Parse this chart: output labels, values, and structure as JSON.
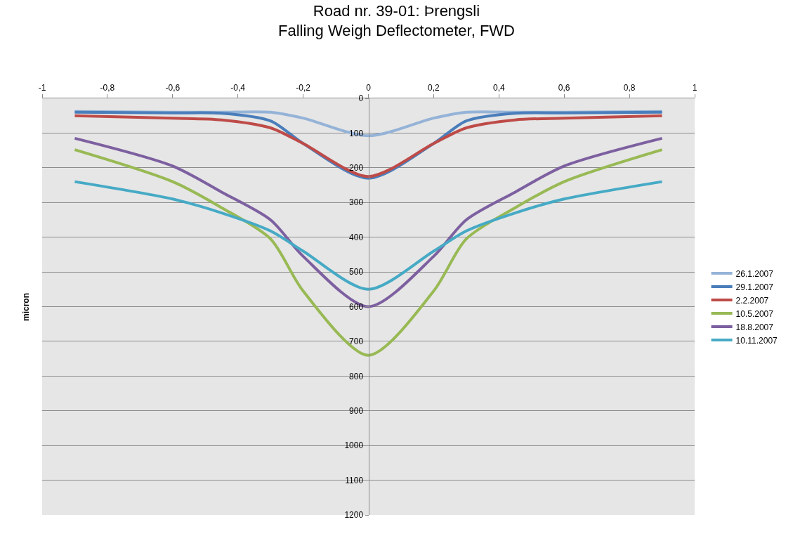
{
  "chart_data": {
    "type": "line",
    "title": "Road nr. 39-01: Þrengsli\nFalling Weigh Deflectometer, FWD",
    "ylabel": "micron",
    "x": [
      -0.9,
      -0.6,
      -0.45,
      -0.3,
      -0.2,
      0,
      0.2,
      0.3,
      0.45,
      0.6,
      0.9
    ],
    "series": [
      {
        "name": "26.1.2007",
        "color": "#95b3d7",
        "values": [
          38,
          40,
          40,
          40,
          57,
          108,
          57,
          40,
          40,
          40,
          38
        ]
      },
      {
        "name": "29.1.2007",
        "color": "#4a7ebb",
        "values": [
          40,
          42,
          43,
          65,
          130,
          230,
          130,
          65,
          43,
          42,
          40
        ]
      },
      {
        "name": "2.2.2007",
        "color": "#be4b48",
        "values": [
          50,
          57,
          62,
          85,
          130,
          225,
          130,
          85,
          62,
          57,
          50
        ]
      },
      {
        "name": "10.5.2007",
        "color": "#98b954",
        "values": [
          148,
          240,
          315,
          405,
          555,
          740,
          555,
          405,
          315,
          240,
          148
        ]
      },
      {
        "name": "18.8.2007",
        "color": "#7d60a0",
        "values": [
          115,
          195,
          270,
          350,
          455,
          600,
          455,
          350,
          270,
          195,
          115
        ]
      },
      {
        "name": "10.11.2007",
        "color": "#46aac5",
        "values": [
          240,
          290,
          330,
          382,
          440,
          550,
          440,
          382,
          330,
          290,
          240
        ]
      }
    ],
    "xlim": [
      -1,
      1
    ],
    "xticks": [
      -1,
      {
        "value": -0.8,
        "label": "-0,8"
      },
      {
        "value": -0.6,
        "label": "-0,6"
      },
      {
        "value": -0.4,
        "label": "-0,4"
      },
      {
        "value": -0.2,
        "label": "-0,2"
      },
      0,
      {
        "value": 0.2,
        "label": "0,2"
      },
      {
        "value": 0.4,
        "label": "0,4"
      },
      {
        "value": 0.6,
        "label": "0,6"
      },
      {
        "value": 0.8,
        "label": "0,8"
      },
      1
    ],
    "ylim": [
      1200,
      0
    ],
    "yticks": [
      0,
      100,
      200,
      300,
      400,
      500,
      600,
      700,
      800,
      900,
      1000,
      1100,
      1200
    ],
    "grid": "y",
    "legend": "right",
    "marker": "none",
    "line_style": "solid"
  }
}
